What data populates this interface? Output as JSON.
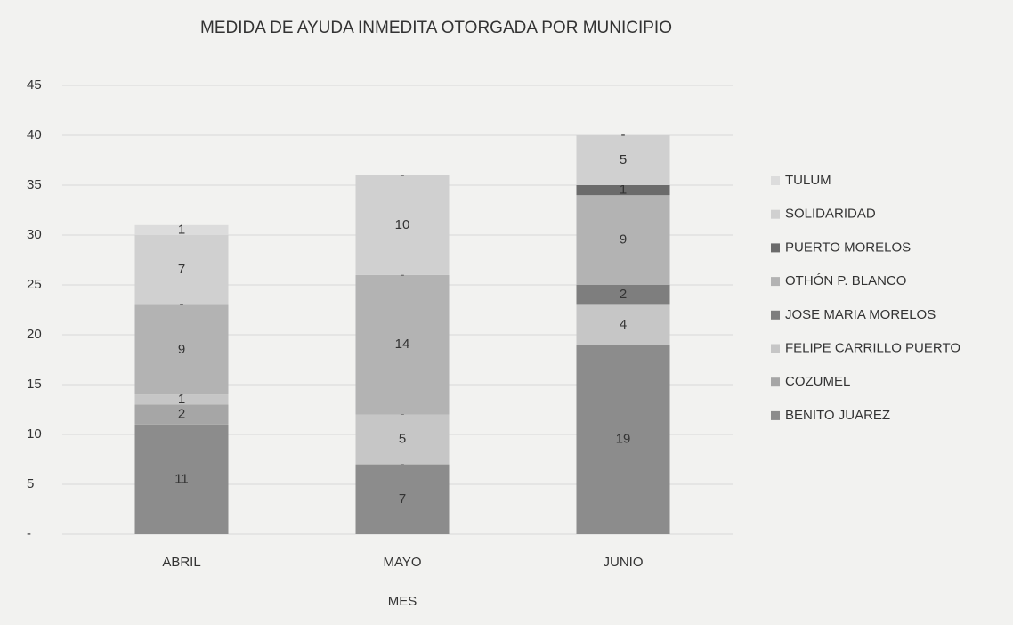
{
  "chart_data": {
    "type": "stacked_bar",
    "title": "MEDIDA DE AYUDA INMEDITA OTORGADA POR MUNICIPIO",
    "x_label": "MES",
    "categories": [
      "ABRIL",
      "MAYO",
      "JUNIO"
    ],
    "series": [
      {
        "name": "BENITO JUAREZ",
        "color": "#8c8c8c",
        "values": [
          11,
          7,
          19
        ]
      },
      {
        "name": "COZUMEL",
        "color": "#a6a6a6",
        "values": [
          2,
          0,
          0
        ],
        "value_labels": [
          "2",
          "-",
          "-"
        ]
      },
      {
        "name": "FELIPE CARRILLO PUERTO",
        "color": "#c6c6c6",
        "values": [
          1,
          5,
          4
        ]
      },
      {
        "name": "JOSE MARIA MORELOS",
        "color": "#7e7e7e",
        "values": [
          0,
          0,
          2
        ],
        "value_labels": [
          "-",
          "-",
          "2"
        ]
      },
      {
        "name": "OTHÓN P. BLANCO",
        "color": "#b3b3b3",
        "values": [
          9,
          14,
          9
        ]
      },
      {
        "name": "PUERTO MORELOS",
        "color": "#6b6b6b",
        "values": [
          0,
          0,
          1
        ],
        "value_labels": [
          "-",
          "-",
          "1"
        ]
      },
      {
        "name": "SOLIDARIDAD",
        "color": "#d0d0d0",
        "values": [
          7,
          10,
          5
        ]
      },
      {
        "name": "TULUM",
        "color": "#dcdcdc",
        "values": [
          1,
          0,
          0
        ],
        "value_labels": [
          "1",
          "-",
          "-"
        ]
      }
    ],
    "ylim": [
      0,
      45
    ],
    "yticks": [
      {
        "value": 0,
        "label": "-"
      },
      5,
      10,
      15,
      20,
      25,
      30,
      35,
      40,
      45
    ],
    "grid": true,
    "legend": "right"
  }
}
